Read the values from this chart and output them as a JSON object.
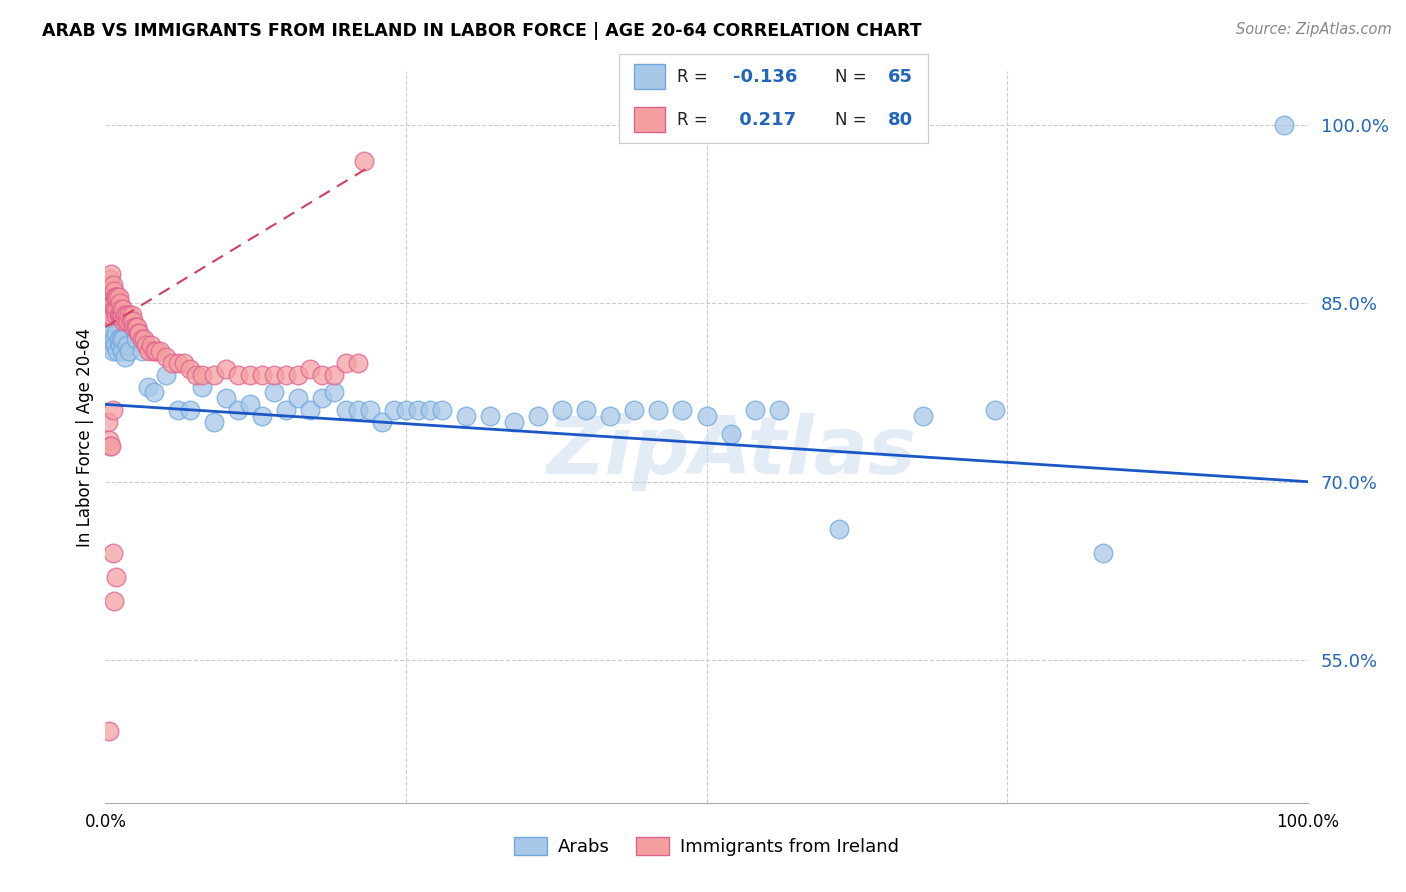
{
  "title": "Arab vs Immigrants from Ireland In Labor Force | Age 20-64 Correlation Chart",
  "source": "Source: ZipAtlas.com",
  "ylabel": "In Labor Force | Age 20-64",
  "ytick_labels": [
    "55.0%",
    "70.0%",
    "85.0%",
    "100.0%"
  ],
  "ytick_values": [
    0.55,
    0.7,
    0.85,
    1.0
  ],
  "xlim": [
    0.0,
    1.0
  ],
  "ylim": [
    0.43,
    1.045
  ],
  "legend_r_arab": "-0.136",
  "legend_n_arab": "65",
  "legend_r_ireland": "0.217",
  "legend_n_ireland": "80",
  "arab_color": "#a8c8e8",
  "ireland_color": "#f4a0a0",
  "arab_edge_color": "#6fa8dc",
  "ireland_edge_color": "#e06090",
  "arab_trend_color": "#1a56c4",
  "ireland_trend_color": "#d04060",
  "background_color": "#ffffff",
  "watermark": "ZipAtlas",
  "arab_x": [
    0.003,
    0.004,
    0.005,
    0.005,
    0.006,
    0.007,
    0.008,
    0.009,
    0.01,
    0.011,
    0.012,
    0.013,
    0.014,
    0.015,
    0.016,
    0.018,
    0.02,
    0.022,
    0.025,
    0.03,
    0.035,
    0.04,
    0.05,
    0.06,
    0.07,
    0.08,
    0.09,
    0.1,
    0.11,
    0.12,
    0.13,
    0.14,
    0.15,
    0.16,
    0.17,
    0.18,
    0.19,
    0.2,
    0.21,
    0.22,
    0.23,
    0.24,
    0.25,
    0.26,
    0.27,
    0.28,
    0.3,
    0.32,
    0.34,
    0.36,
    0.38,
    0.4,
    0.42,
    0.44,
    0.46,
    0.48,
    0.5,
    0.52,
    0.54,
    0.56,
    0.61,
    0.68,
    0.74,
    0.83,
    0.98
  ],
  "arab_y": [
    0.82,
    0.83,
    0.815,
    0.825,
    0.81,
    0.82,
    0.815,
    0.825,
    0.81,
    0.82,
    0.815,
    0.82,
    0.81,
    0.82,
    0.805,
    0.815,
    0.81,
    0.83,
    0.82,
    0.81,
    0.78,
    0.775,
    0.79,
    0.76,
    0.76,
    0.78,
    0.75,
    0.77,
    0.76,
    0.765,
    0.755,
    0.775,
    0.76,
    0.77,
    0.76,
    0.77,
    0.775,
    0.76,
    0.76,
    0.76,
    0.75,
    0.76,
    0.76,
    0.76,
    0.76,
    0.76,
    0.755,
    0.755,
    0.75,
    0.755,
    0.76,
    0.76,
    0.755,
    0.76,
    0.76,
    0.76,
    0.755,
    0.74,
    0.76,
    0.76,
    0.66,
    0.755,
    0.76,
    0.64,
    1.0
  ],
  "ireland_x": [
    0.001,
    0.001,
    0.002,
    0.002,
    0.003,
    0.003,
    0.004,
    0.004,
    0.005,
    0.005,
    0.006,
    0.006,
    0.007,
    0.007,
    0.008,
    0.008,
    0.009,
    0.009,
    0.01,
    0.01,
    0.011,
    0.011,
    0.012,
    0.012,
    0.013,
    0.013,
    0.014,
    0.015,
    0.015,
    0.016,
    0.017,
    0.018,
    0.019,
    0.02,
    0.021,
    0.022,
    0.023,
    0.024,
    0.025,
    0.026,
    0.027,
    0.028,
    0.03,
    0.032,
    0.034,
    0.036,
    0.038,
    0.04,
    0.042,
    0.045,
    0.05,
    0.055,
    0.06,
    0.065,
    0.07,
    0.075,
    0.08,
    0.09,
    0.1,
    0.11,
    0.12,
    0.13,
    0.14,
    0.15,
    0.16,
    0.17,
    0.18,
    0.19,
    0.2,
    0.21,
    0.215,
    0.002,
    0.003,
    0.004,
    0.005,
    0.006,
    0.007,
    0.009,
    0.003,
    0.006
  ],
  "ireland_y": [
    0.84,
    0.855,
    0.84,
    0.86,
    0.845,
    0.865,
    0.84,
    0.87,
    0.855,
    0.875,
    0.85,
    0.865,
    0.845,
    0.86,
    0.845,
    0.855,
    0.84,
    0.855,
    0.845,
    0.855,
    0.84,
    0.855,
    0.84,
    0.85,
    0.84,
    0.845,
    0.84,
    0.835,
    0.845,
    0.84,
    0.835,
    0.84,
    0.835,
    0.84,
    0.835,
    0.84,
    0.835,
    0.83,
    0.83,
    0.83,
    0.825,
    0.825,
    0.82,
    0.82,
    0.815,
    0.81,
    0.815,
    0.81,
    0.81,
    0.81,
    0.805,
    0.8,
    0.8,
    0.8,
    0.795,
    0.79,
    0.79,
    0.79,
    0.795,
    0.79,
    0.79,
    0.79,
    0.79,
    0.79,
    0.79,
    0.795,
    0.79,
    0.79,
    0.8,
    0.8,
    0.97,
    0.75,
    0.735,
    0.73,
    0.73,
    0.76,
    0.6,
    0.62,
    0.49,
    0.64
  ],
  "arab_trend_start_x": 0.0,
  "arab_trend_start_y": 0.765,
  "arab_trend_end_x": 1.0,
  "arab_trend_end_y": 0.7,
  "ireland_trend_start_x": 0.0,
  "ireland_trend_start_y": 0.83,
  "ireland_trend_end_x": 0.22,
  "ireland_trend_end_y": 0.965
}
